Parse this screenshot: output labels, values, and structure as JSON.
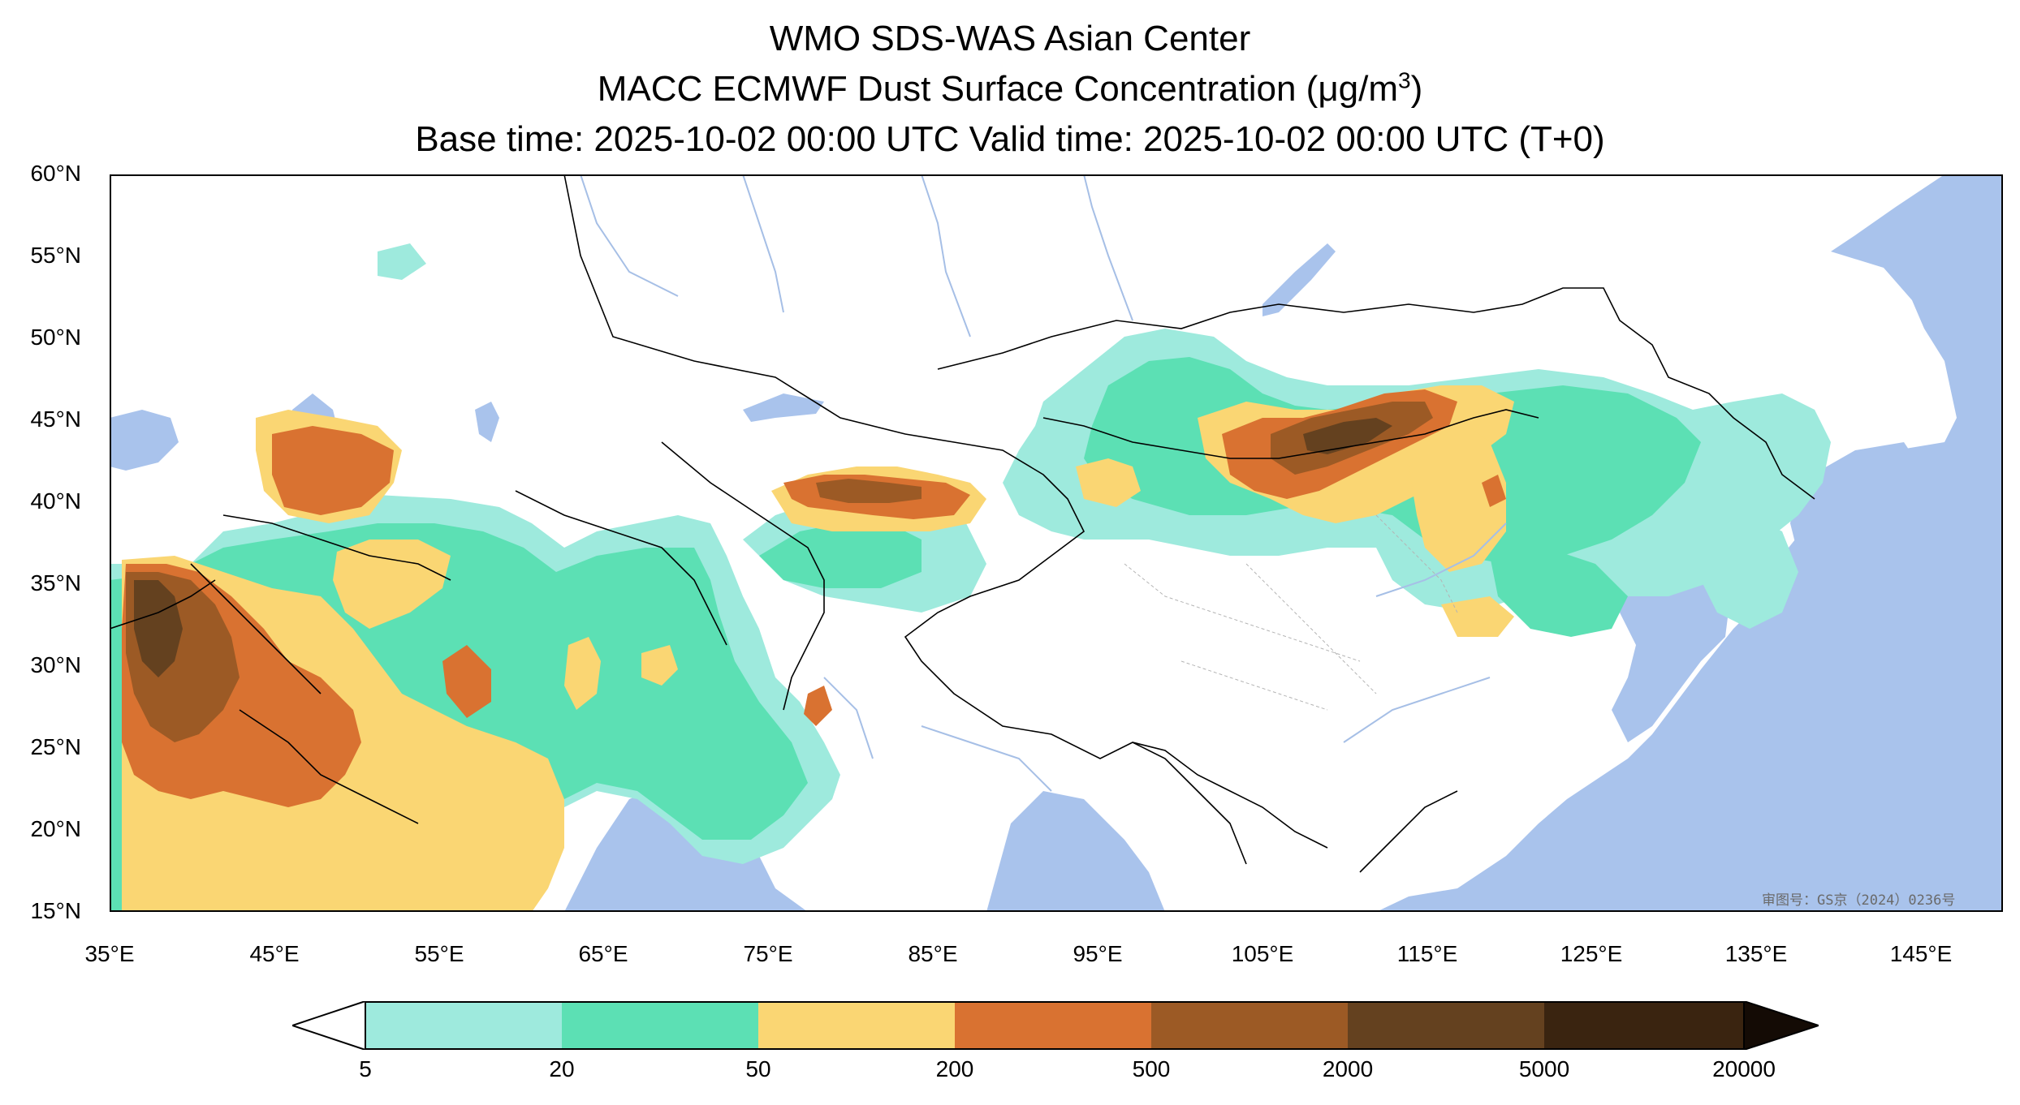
{
  "titles": {
    "line1": "WMO SDS-WAS Asian Center",
    "line2_prefix": "MACC ECMWF Dust Surface Concentration (",
    "line2_unit": "μg/m",
    "line2_exp": "3",
    "line2_suffix": ")",
    "line3": "Base time: 2025-10-02 00:00 UTC Valid time: 2025-10-02 00:00 UTC (T+0)"
  },
  "map": {
    "lat_ticks": [
      "60°N",
      "55°N",
      "50°N",
      "45°N",
      "40°N",
      "35°N",
      "30°N",
      "25°N",
      "20°N",
      "15°N"
    ],
    "lon_ticks": [
      "35°E",
      "45°E",
      "55°E",
      "65°E",
      "75°E",
      "85°E",
      "95°E",
      "105°E",
      "115°E",
      "125°E",
      "135°E",
      "145°E"
    ],
    "extent": {
      "lon_min": 35,
      "lon_max": 150,
      "lat_min": 15,
      "lat_max": 60
    },
    "watermark": "审图号：GS京（2024）0236号",
    "colors": {
      "ocean": "#a9c3ec",
      "land": "#ffffff",
      "river": "#a6bfe6",
      "border": "#000000"
    }
  },
  "colorbar": {
    "labels": [
      "5",
      "20",
      "50",
      "200",
      "500",
      "2000",
      "5000",
      "20000"
    ],
    "colors": [
      "#ffffff",
      "#9eeadd",
      "#5ce0b4",
      "#fad673",
      "#d97231",
      "#9c5a25",
      "#64411f",
      "#3a2410",
      "#140b05"
    ]
  }
}
